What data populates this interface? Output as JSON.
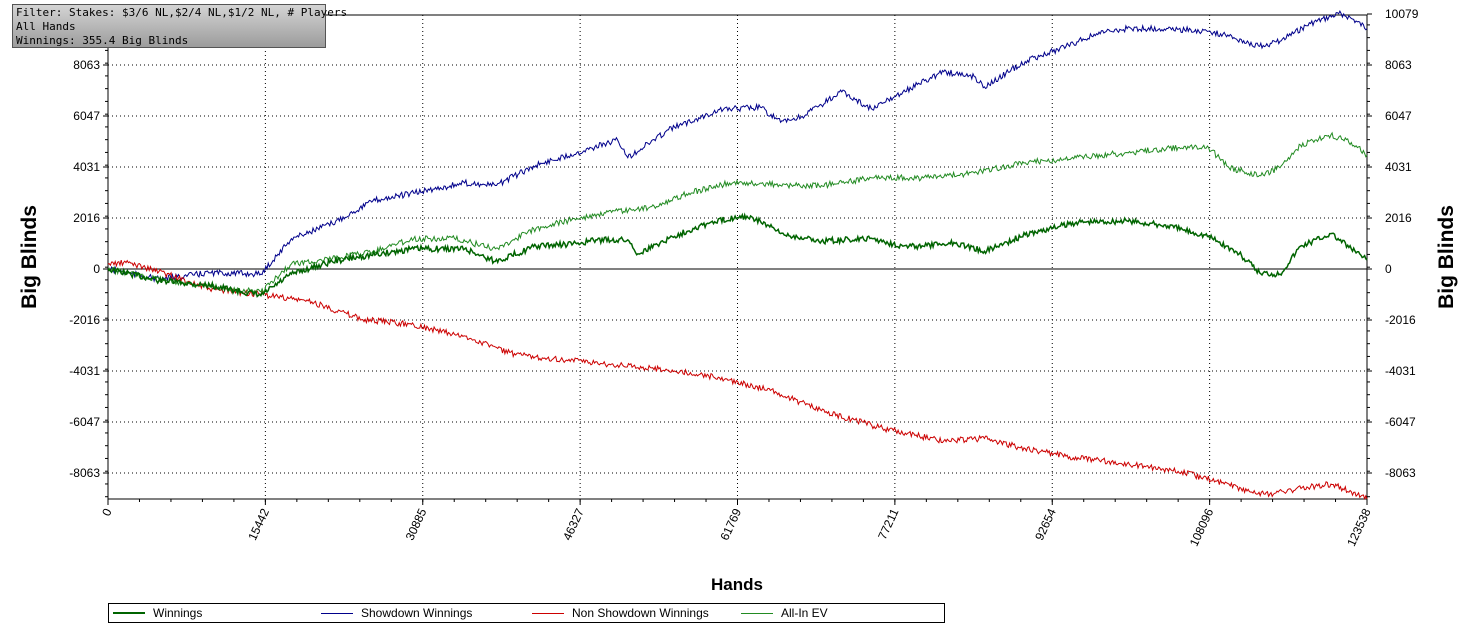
{
  "filter": {
    "line1": "Filter: Stakes: $3/6 NL,$2/4 NL,$1/2 NL, # Players",
    "line2": "All Hands",
    "line3": "Winnings: 355.4 Big Blinds"
  },
  "chart_data": {
    "type": "line",
    "xlabel": "Hands",
    "ylabel": "Big Blinds",
    "xlim": [
      0,
      123538
    ],
    "ylim": [
      -9100,
      10079
    ],
    "x_ticks": [
      "0",
      "15442",
      "30885",
      "46327",
      "61769",
      "77211",
      "92654",
      "108096",
      "123538"
    ],
    "x_tick_values": [
      0,
      15442,
      30885,
      46327,
      61769,
      77211,
      92654,
      108096,
      123538
    ],
    "y_ticks": [
      "10079",
      "8063",
      "6047",
      "4031",
      "2016",
      "0",
      "-2016",
      "-4031",
      "-6047",
      "-8063"
    ],
    "y_tick_values": [
      10079,
      8063,
      6047,
      4031,
      2016,
      0,
      -2016,
      -4031,
      -6047,
      -8063
    ],
    "grid": true,
    "series": [
      {
        "name": "Winnings",
        "color": "#006400",
        "width": 1.5,
        "x": [
          0,
          5000,
          10000,
          15000,
          18000,
          22000,
          25000,
          30000,
          35000,
          38000,
          42000,
          46000,
          48000,
          51000,
          52000,
          55000,
          58000,
          62000,
          64000,
          66000,
          70000,
          75000,
          78000,
          80000,
          83000,
          86000,
          90000,
          95000,
          100000,
          104000,
          108000,
          111000,
          113000,
          115000,
          117000,
          120000,
          122000,
          123538
        ],
        "y": [
          0,
          -450,
          -650,
          -1050,
          -200,
          300,
          500,
          800,
          800,
          300,
          900,
          1000,
          1150,
          1150,
          600,
          1200,
          1700,
          2100,
          1900,
          1400,
          1100,
          1200,
          900,
          900,
          1050,
          700,
          1350,
          1850,
          1900,
          1700,
          1300,
          600,
          -150,
          -200,
          900,
          1400,
          800,
          355
        ]
      },
      {
        "name": "Showdown Winnings",
        "color": "#00008b",
        "width": 1,
        "x": [
          0,
          5000,
          10000,
          15000,
          18000,
          22000,
          26000,
          30000,
          35000,
          38000,
          42000,
          46000,
          50000,
          51000,
          55000,
          60000,
          64000,
          66000,
          68000,
          72000,
          75000,
          78000,
          82000,
          85000,
          86000,
          90000,
          94000,
          97000,
          100000,
          104000,
          108000,
          110000,
          113000,
          115000,
          118000,
          121000,
          122000,
          123538
        ],
        "y": [
          0,
          -400,
          -150,
          -200,
          1200,
          1800,
          2700,
          3000,
          3400,
          3300,
          4100,
          4600,
          5100,
          4400,
          5500,
          6300,
          6400,
          5800,
          6000,
          7000,
          6300,
          7000,
          7800,
          7600,
          7200,
          8200,
          8800,
          9300,
          9500,
          9500,
          9400,
          9200,
          8800,
          9000,
          9700,
          10100,
          9900,
          9500
        ]
      },
      {
        "name": "Non Showdown Winnings",
        "color": "#cc0000",
        "width": 1,
        "x": [
          0,
          2000,
          5000,
          10000,
          15000,
          20000,
          25000,
          30000,
          36000,
          40000,
          45000,
          50000,
          55000,
          60000,
          65000,
          70000,
          76000,
          82000,
          86000,
          90000,
          94000,
          100000,
          105000,
          110000,
          112000,
          114000,
          118000,
          120000,
          122000,
          123538
        ],
        "y": [
          200,
          250,
          -100,
          -800,
          -1000,
          -1300,
          -2000,
          -2200,
          -2800,
          -3400,
          -3600,
          -3800,
          -4000,
          -4300,
          -4800,
          -5600,
          -6300,
          -6800,
          -6700,
          -7100,
          -7400,
          -7700,
          -8000,
          -8500,
          -8800,
          -8900,
          -8600,
          -8500,
          -8800,
          -9100
        ]
      },
      {
        "name": "All-In EV",
        "color": "#228b22",
        "width": 1,
        "x": [
          0,
          5000,
          10000,
          15000,
          18000,
          22000,
          26000,
          30000,
          34000,
          38000,
          42000,
          46000,
          50000,
          53000,
          57000,
          61000,
          64000,
          66000,
          70000,
          75000,
          80000,
          85000,
          90000,
          95000,
          100000,
          105000,
          108000,
          110000,
          113000,
          115000,
          117000,
          120000,
          122000,
          123538
        ],
        "y": [
          0,
          -400,
          -700,
          -900,
          200,
          400,
          700,
          1200,
          1200,
          800,
          1600,
          2000,
          2300,
          2400,
          3000,
          3400,
          3400,
          3300,
          3300,
          3600,
          3600,
          3800,
          4200,
          4400,
          4600,
          4800,
          4800,
          4000,
          3700,
          4000,
          4900,
          5300,
          5000,
          4500
        ]
      }
    ]
  }
}
